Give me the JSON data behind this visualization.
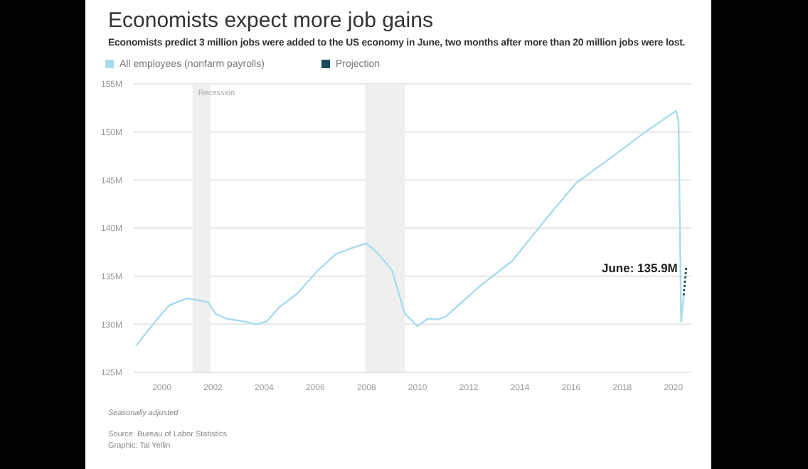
{
  "chart_data": {
    "type": "line",
    "title": "Economists expect more job gains",
    "subtitle": "Economists predict 3 million jobs were added to the US economy in June, two months after more than 20 million jobs were lost.",
    "series": [
      {
        "name": "All employees (nonfarm payrolls)",
        "color": "#a8dcea",
        "x": [
          1999.0,
          1999.9,
          2000.3,
          2001.0,
          2001.2,
          2001.8,
          2002.1,
          2002.5,
          2003.2,
          2003.7,
          2004.1,
          2004.6,
          2005.3,
          2006.1,
          2006.8,
          2007.5,
          2008.0,
          2008.4,
          2009.0,
          2009.5,
          2010.0,
          2010.4,
          2010.8,
          2011.1,
          2012.4,
          2013.7,
          2015.0,
          2016.2,
          2017.7,
          2018.9,
          2020.1,
          2020.2,
          2020.3,
          2020.4
        ],
        "values": [
          127.8,
          130.8,
          132.0,
          132.7,
          132.6,
          132.3,
          131.1,
          130.6,
          130.3,
          130.0,
          130.3,
          131.8,
          133.2,
          135.6,
          137.3,
          138.0,
          138.4,
          137.5,
          135.6,
          131.1,
          129.8,
          130.6,
          130.5,
          130.8,
          133.9,
          136.6,
          140.9,
          144.7,
          147.6,
          150.0,
          152.2,
          151.0,
          130.3,
          133.0
        ]
      },
      {
        "name": "Projection",
        "color": "#1a4a5e",
        "line_style": "dotted",
        "x": [
          2020.4,
          2020.5
        ],
        "values": [
          133.0,
          135.9
        ]
      }
    ],
    "xlim": [
      1998.9,
      2020.7
    ],
    "xticks": [
      2000,
      2002,
      2004,
      2006,
      2008,
      2010,
      2012,
      2014,
      2016,
      2018,
      2020
    ],
    "ylim": [
      125,
      155
    ],
    "yticks": [
      {
        "value": 125,
        "label": "125M"
      },
      {
        "value": 130,
        "label": "130M"
      },
      {
        "value": 135,
        "label": "135M"
      },
      {
        "value": 140,
        "label": "140M"
      },
      {
        "value": 145,
        "label": "145M"
      },
      {
        "value": 150,
        "label": "150M"
      },
      {
        "value": 155,
        "label": "155M"
      }
    ],
    "grid": "y",
    "legend": "top left",
    "marker": "none",
    "line_style": "solid",
    "bands": [
      {
        "axis": "x",
        "from": 2001.2,
        "to": 2001.9,
        "label": "Recession",
        "color": "#efefef"
      },
      {
        "axis": "x",
        "from": 2007.95,
        "to": 2009.5,
        "label": null,
        "color": "#efefef"
      }
    ],
    "annotations": [
      {
        "text": "June: 135.9M",
        "x": 2020.5,
        "y": 135.9
      },
      "Seasonally adjusted",
      "Source: Bureau of Labor Statistics",
      "Graphic: Tal Yellin"
    ]
  }
}
